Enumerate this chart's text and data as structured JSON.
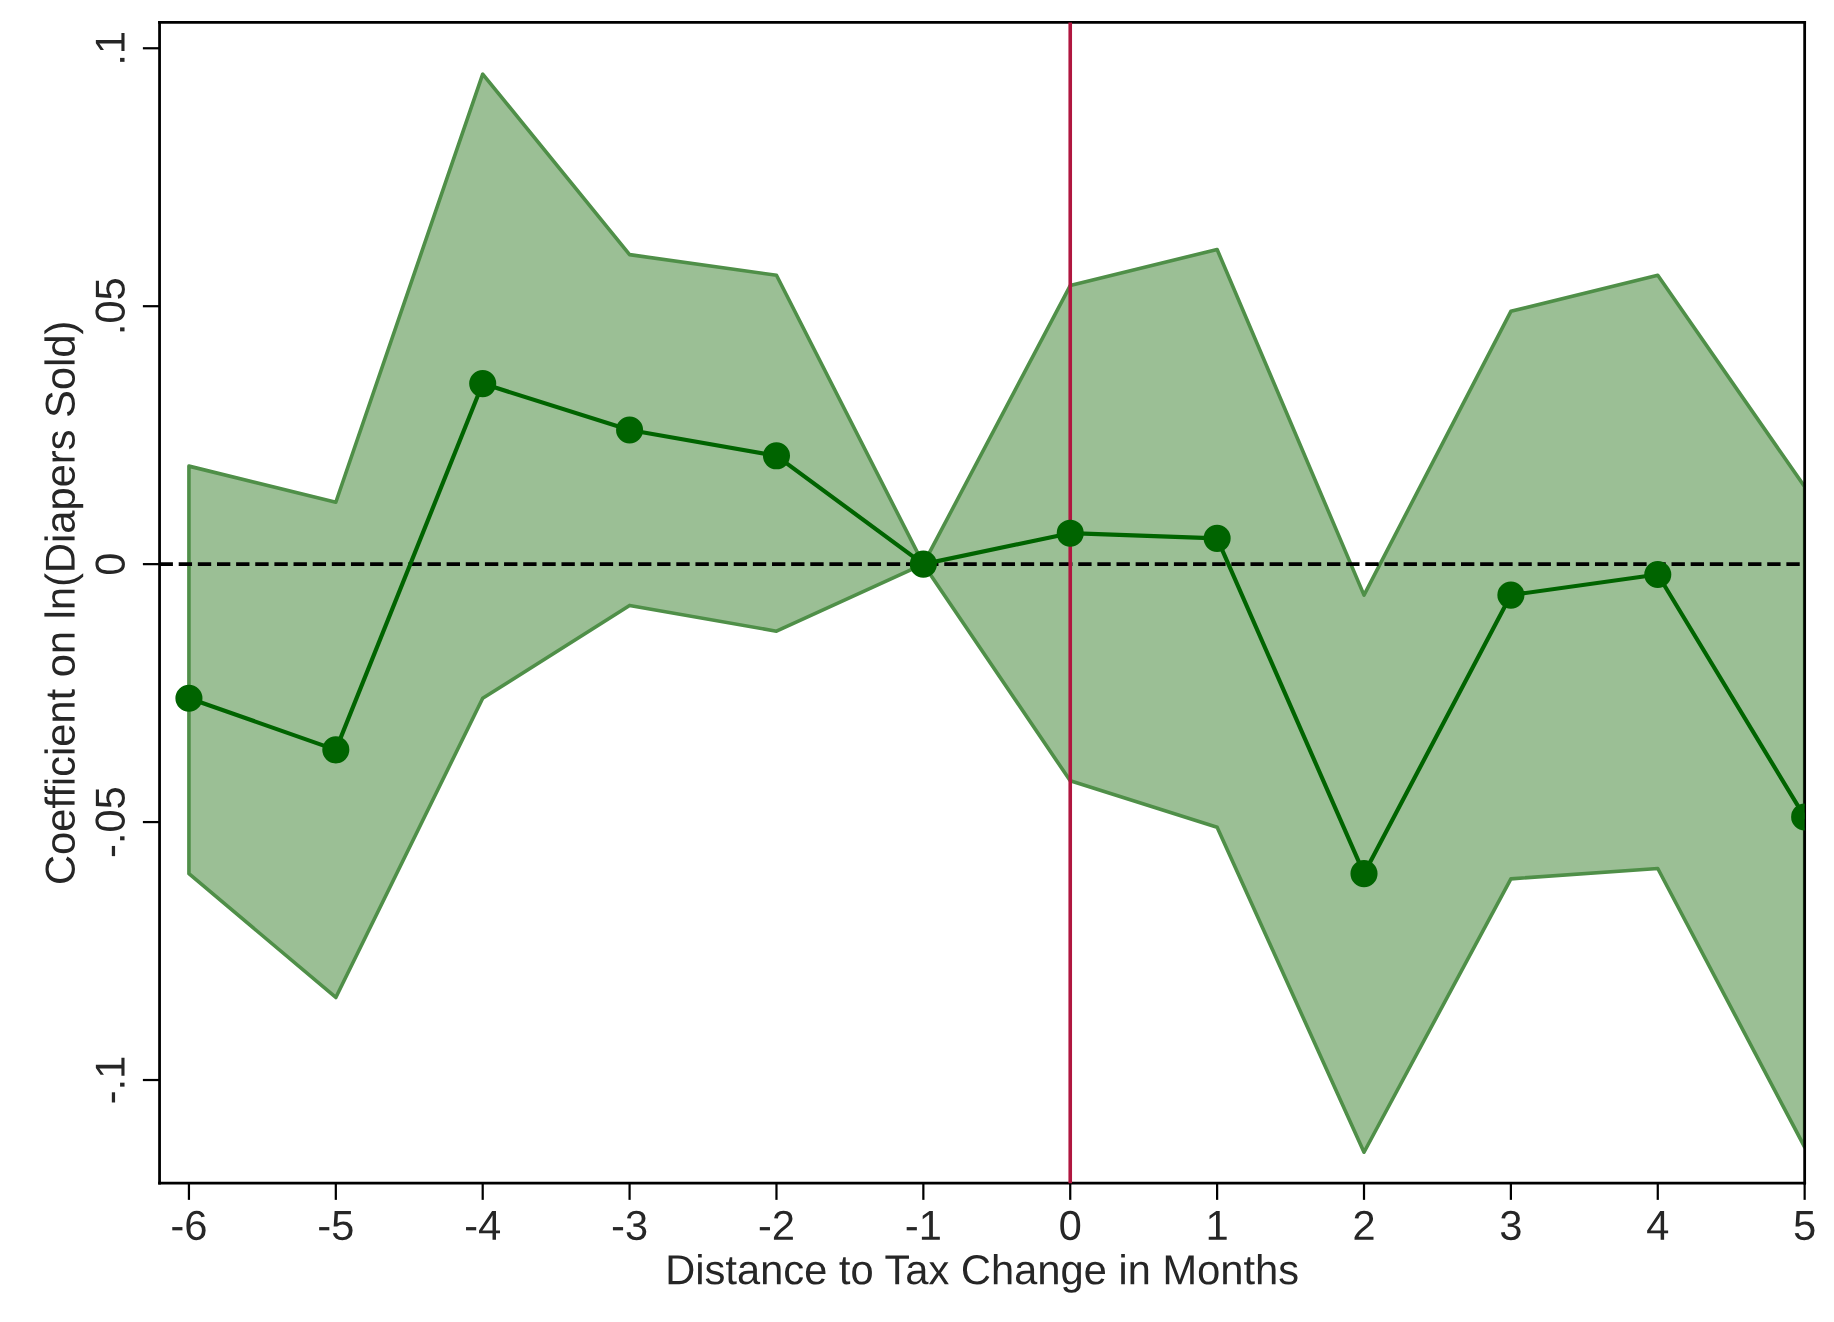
{
  "chart_data": {
    "type": "line",
    "xlabel": "Distance to Tax Change in Months",
    "ylabel": "Coefficient on ln(Diapers Sold)",
    "x": [
      -6,
      -5,
      -4,
      -3,
      -2,
      -1,
      0,
      1,
      2,
      3,
      4,
      5
    ],
    "series": [
      {
        "color": "#006400",
        "values": [
          -0.026,
          -0.036,
          0.035,
          0.026,
          0.021,
          0,
          0.006,
          0.005,
          -0.06,
          -0.006,
          -0.002,
          -0.049
        ],
        "lower": [
          -0.06,
          -0.084,
          -0.026,
          -0.008,
          -0.013,
          0,
          -0.042,
          -0.051,
          -0.114,
          -0.061,
          -0.059,
          -0.113
        ],
        "upper": [
          0.019,
          0.012,
          0.095,
          0.06,
          0.056,
          0,
          0.054,
          0.061,
          -0.006,
          0.049,
          0.056,
          0.015
        ]
      }
    ],
    "xlim": [
      -6.2,
      5
    ],
    "xticks": [
      -6,
      -5,
      -4,
      -3,
      -2,
      -1,
      0,
      1,
      2,
      3,
      4,
      5
    ],
    "ylim": [
      -0.12,
      0.105
    ],
    "yticks": [
      {
        "value": -0.1,
        "label": "-.1"
      },
      {
        "value": -0.05,
        "label": "-.05"
      },
      {
        "value": 0,
        "label": "0"
      },
      {
        "value": 0.05,
        "label": ".05"
      },
      {
        "value": 0.1,
        "label": ".1"
      }
    ],
    "ref_lines": [
      {
        "axis": "y",
        "value": 0,
        "color": "#000000",
        "line_style": "dashed"
      },
      {
        "axis": "x",
        "value": 0,
        "color": "#b0163f",
        "line_style": "solid"
      }
    ],
    "marker": "circle",
    "line_style": "solid",
    "grid": false,
    "legend": false
  }
}
